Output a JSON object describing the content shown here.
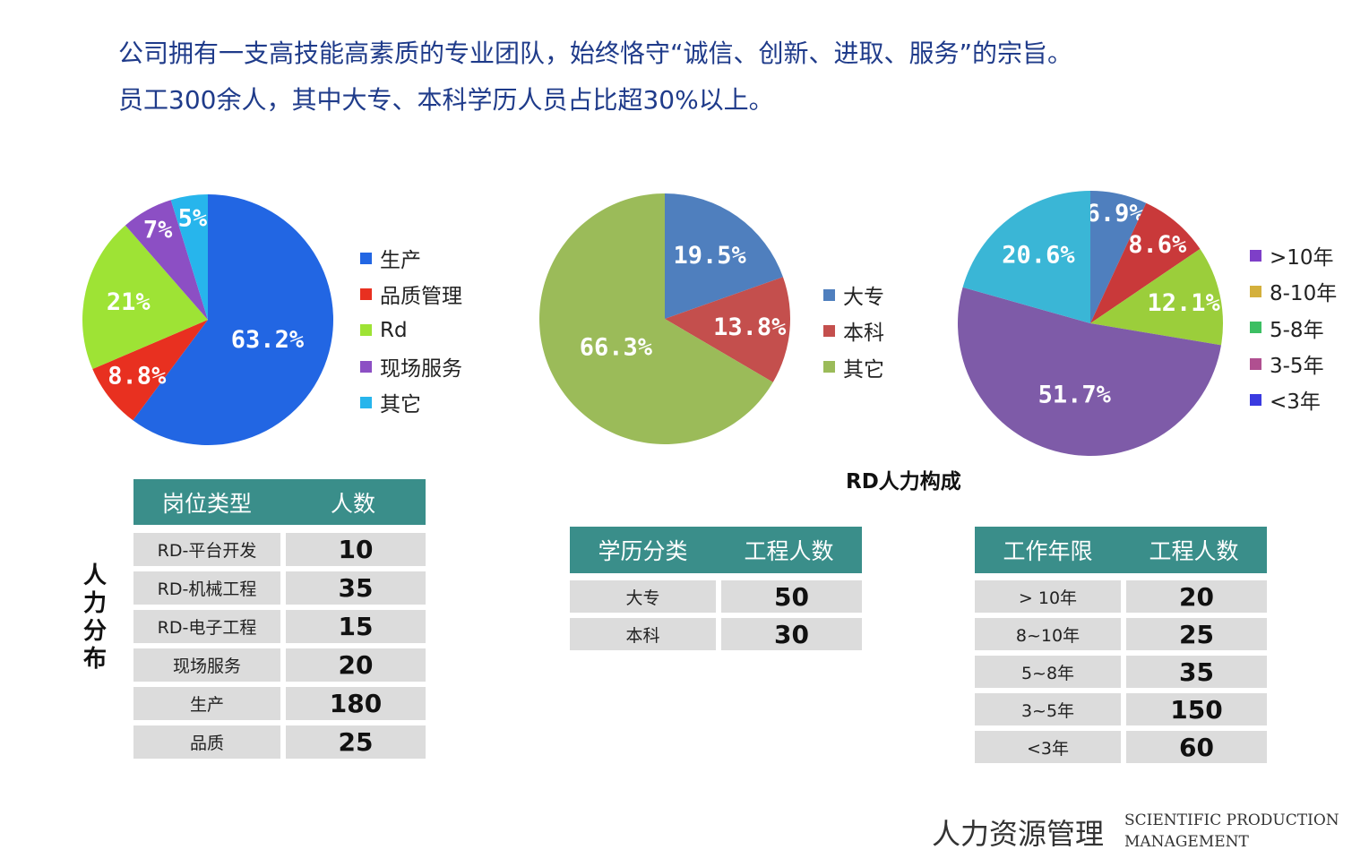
{
  "intro": {
    "line1": "公司拥有一支高技能高素质的专业团队，始终恪守“诚信、创新、进取、服务”的宗旨。",
    "line2": "员工300余人，其中大专、本科学历人员占比超30%以上。"
  },
  "chart_data": [
    {
      "type": "pie",
      "title": "",
      "categories": [
        "生产",
        "品质管理",
        "Rd",
        "现场服务",
        "其它"
      ],
      "values": [
        63.2,
        8.8,
        21,
        7,
        5
      ],
      "labels": [
        "63.2%",
        "8.8%",
        "21%",
        "7%",
        "5%"
      ],
      "colors": [
        "#2266e3",
        "#e83020",
        "#9ee335",
        "#8c4fc4",
        "#27b5ec"
      ],
      "legend": "right"
    },
    {
      "type": "pie",
      "title": "",
      "categories": [
        "大专",
        "本科",
        "其它"
      ],
      "values": [
        19.5,
        13.8,
        66.3
      ],
      "labels": [
        "19.5%",
        "13.8%",
        "66.3%"
      ],
      "colors": [
        "#4f7fbe",
        "#c44f4d",
        "#9bbb59"
      ],
      "legend": "right"
    },
    {
      "type": "pie",
      "title": "",
      "categories": [
        ">10年",
        "8-10年",
        "5-8年",
        "3-5年",
        "<3年"
      ],
      "values": [
        6.9,
        8.6,
        12.1,
        51.7,
        20.6
      ],
      "labels": [
        "6.9%",
        "8.6%",
        "12.1%",
        "51.7%",
        "20.6%"
      ],
      "colors": [
        "#4f7fbe",
        "#c9393a",
        "#9bce3b",
        "#7e5ba8",
        "#3ab6d6"
      ],
      "legend": "right",
      "legend_categories": [
        ">10年",
        "8-10年",
        "5-8年",
        "3-5年",
        "<3年"
      ],
      "legend_colors": [
        "#7e3fc8",
        "#d4b03c",
        "#3cbf63",
        "#b04f90",
        "#3a3ae0"
      ]
    }
  ],
  "rd_caption": "RD人力构成",
  "vertical_label": "人力分布",
  "table_positions": {
    "headers": [
      "岗位类型",
      "人数"
    ],
    "rows": [
      [
        "RD-平台开发",
        "10"
      ],
      [
        "RD-机械工程",
        "35"
      ],
      [
        "RD-电子工程",
        "15"
      ],
      [
        "现场服务",
        "20"
      ],
      [
        "生产",
        "180"
      ],
      [
        "品质",
        "25"
      ]
    ]
  },
  "table_education": {
    "headers": [
      "学历分类",
      "工程人数"
    ],
    "rows": [
      [
        "大专",
        "50"
      ],
      [
        "本科",
        "30"
      ]
    ]
  },
  "table_tenure": {
    "headers": [
      "工作年限",
      "工程人数"
    ],
    "rows": [
      [
        "> 10年",
        "20"
      ],
      [
        "8~10年",
        "25"
      ],
      [
        "5~8年",
        "35"
      ],
      [
        "3~5年",
        "150"
      ],
      [
        "<3年",
        "60"
      ]
    ]
  },
  "footer": {
    "cn": "人力资源管理",
    "en_line1": "SCIENTIFIC PRODUCTION",
    "en_line2": "MANAGEMENT"
  }
}
